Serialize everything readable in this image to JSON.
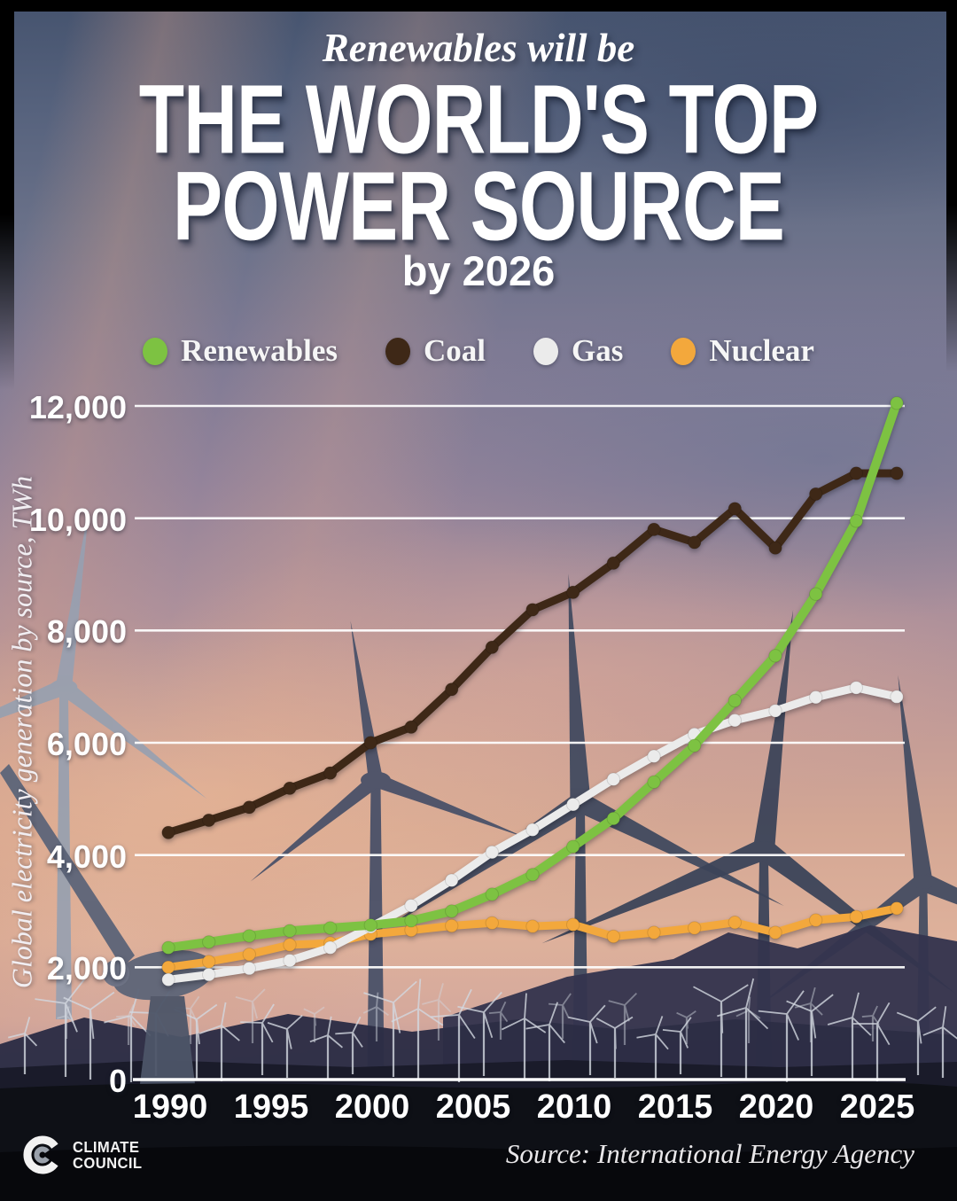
{
  "header": {
    "eyebrow": "Renewables will be",
    "title_line1": "THE WORLD'S TOP",
    "title_line2": "POWER SOURCE",
    "subtitle": "by 2026"
  },
  "legend": [
    {
      "label": "Renewables",
      "color": "#7dc242"
    },
    {
      "label": "Coal",
      "color": "#3e2817"
    },
    {
      "label": "Gas",
      "color": "#ebebeb"
    },
    {
      "label": "Nuclear",
      "color": "#f3a83c"
    }
  ],
  "chart": {
    "ylabel": "Global electricity generation by source, TWh",
    "y_ticks": [
      "12,000",
      "10,000",
      "8,000",
      "6,000",
      "4,000",
      "2,000",
      "0"
    ],
    "x_ticks": [
      "1990",
      "1995",
      "2000",
      "2005",
      "2010",
      "2015",
      "2020",
      "2025"
    ]
  },
  "chart_data": {
    "type": "line",
    "title": "Renewables will be the world's top power source by 2026",
    "xlabel": "",
    "ylabel": "Global electricity generation by source, TWh",
    "xlim": [
      1990,
      2026
    ],
    "ylim": [
      0,
      12000
    ],
    "grid": "horizontal",
    "legend_position": "top",
    "x": [
      1990,
      1992,
      1994,
      1996,
      1998,
      2000,
      2002,
      2004,
      2006,
      2008,
      2010,
      2012,
      2014,
      2016,
      2018,
      2020,
      2022,
      2024,
      2026
    ],
    "series": [
      {
        "name": "Renewables",
        "color": "#7dc242",
        "values": [
          2350,
          2450,
          2560,
          2650,
          2700,
          2750,
          2830,
          3000,
          3300,
          3650,
          4150,
          4650,
          5300,
          5950,
          6750,
          7550,
          8650,
          9950,
          12050
        ]
      },
      {
        "name": "Coal",
        "color": "#3e2817",
        "values": [
          4400,
          4620,
          4850,
          5190,
          5460,
          6000,
          6280,
          6950,
          7700,
          8370,
          8680,
          9200,
          9800,
          9570,
          10170,
          9470,
          10430,
          10800,
          10800
        ]
      },
      {
        "name": "Gas",
        "color": "#ebebeb",
        "values": [
          1780,
          1870,
          1980,
          2120,
          2350,
          2720,
          3100,
          3550,
          4050,
          4450,
          4900,
          5350,
          5760,
          6150,
          6400,
          6570,
          6810,
          6980,
          6820
        ]
      },
      {
        "name": "Nuclear",
        "color": "#f3a83c",
        "values": [
          2000,
          2100,
          2230,
          2400,
          2430,
          2590,
          2660,
          2740,
          2790,
          2730,
          2760,
          2550,
          2620,
          2700,
          2800,
          2620,
          2840,
          2900,
          3050
        ]
      }
    ]
  },
  "footer": {
    "source": "Source: International Energy Agency",
    "logo_line1": "CLIMATE",
    "logo_line2": "COUNCIL"
  }
}
